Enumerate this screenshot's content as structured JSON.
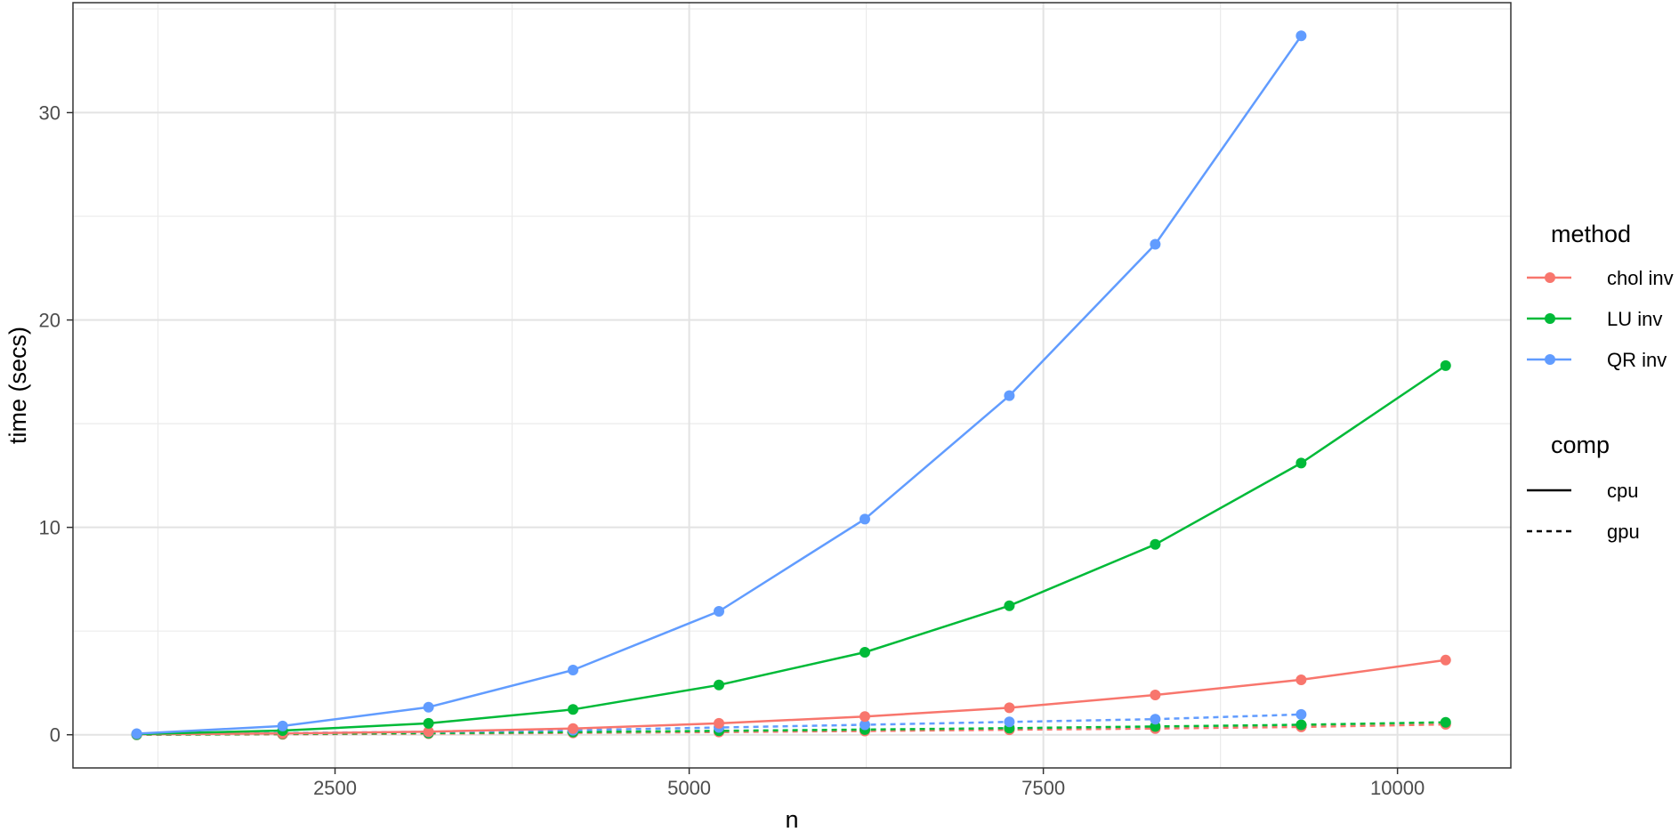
{
  "chart_data": {
    "type": "line",
    "xlabel": "n",
    "ylabel": "time (secs)",
    "xlim": [
      650,
      10800
    ],
    "ylim": [
      -1.6,
      35.3
    ],
    "x_ticks": [
      2500,
      5000,
      7500,
      10000
    ],
    "y_ticks": [
      0,
      10,
      20,
      30
    ],
    "grid": true,
    "legend_position": "right",
    "legends": [
      {
        "title": "method",
        "entries": [
          {
            "label": "chol inv",
            "color": "#f8766d"
          },
          {
            "label": "LU inv",
            "color": "#00ba38"
          },
          {
            "label": "QR inv",
            "color": "#619cff"
          }
        ]
      },
      {
        "title": "comp",
        "entries": [
          {
            "label": "cpu",
            "linetype": "solid"
          },
          {
            "label": "gpu",
            "linetype": "dashed"
          }
        ]
      }
    ],
    "series": [
      {
        "method": "chol inv",
        "comp": "cpu",
        "color": "#f8766d",
        "linetype": "solid",
        "x": [
          1100,
          2130,
          3160,
          4180,
          5210,
          6240,
          7260,
          8290,
          9320,
          10340
        ],
        "y": [
          0.02,
          0.06,
          0.15,
          0.3,
          0.55,
          0.88,
          1.3,
          1.92,
          2.65,
          3.6
        ]
      },
      {
        "method": "LU inv",
        "comp": "cpu",
        "color": "#00ba38",
        "linetype": "solid",
        "x": [
          1100,
          2130,
          3160,
          4180,
          5210,
          6240,
          7260,
          8290,
          9320,
          10340
        ],
        "y": [
          0.03,
          0.2,
          0.55,
          1.22,
          2.4,
          3.98,
          6.22,
          9.18,
          13.1,
          17.8
        ]
      },
      {
        "method": "QR inv",
        "comp": "cpu",
        "color": "#619cff",
        "linetype": "solid",
        "x": [
          1100,
          2130,
          3160,
          4180,
          5210,
          6240,
          7260,
          8290,
          9320
        ],
        "y": [
          0.05,
          0.42,
          1.33,
          3.12,
          5.95,
          10.4,
          16.35,
          23.65,
          33.7
        ]
      },
      {
        "method": "chol inv",
        "comp": "gpu",
        "color": "#f8766d",
        "linetype": "dashed",
        "x": [
          1100,
          2130,
          3160,
          4180,
          5210,
          6240,
          7260,
          8290,
          9320,
          10340
        ],
        "y": [
          0.0,
          0.02,
          0.05,
          0.09,
          0.13,
          0.18,
          0.24,
          0.3,
          0.38,
          0.5
        ]
      },
      {
        "method": "LU inv",
        "comp": "gpu",
        "color": "#00ba38",
        "linetype": "dashed",
        "x": [
          1100,
          2130,
          3160,
          4180,
          5210,
          6240,
          7260,
          8290,
          9320,
          10340
        ],
        "y": [
          0.0,
          0.04,
          0.08,
          0.13,
          0.19,
          0.25,
          0.32,
          0.4,
          0.48,
          0.6
        ]
      },
      {
        "method": "QR inv",
        "comp": "gpu",
        "color": "#619cff",
        "linetype": "dashed",
        "x": [
          1100,
          2130,
          3160,
          4180,
          5210,
          6240,
          7260,
          8290,
          9320
        ],
        "y": [
          0.02,
          0.08,
          0.14,
          0.22,
          0.35,
          0.48,
          0.62,
          0.75,
          0.98
        ]
      }
    ]
  }
}
